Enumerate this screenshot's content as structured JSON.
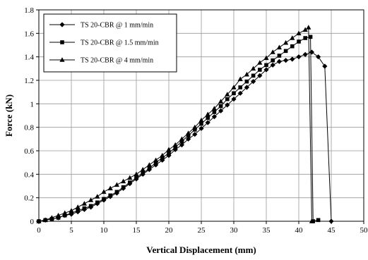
{
  "chart_data": {
    "type": "line",
    "title": "",
    "xlabel": "Vertical Displacement (mm)",
    "ylabel": "Force (kN)",
    "xlim": [
      0,
      50
    ],
    "ylim": [
      0,
      1.8
    ],
    "xticks": [
      0,
      5,
      10,
      15,
      20,
      25,
      30,
      35,
      40,
      45,
      50
    ],
    "yticks": [
      0,
      0.2,
      0.4,
      0.6,
      0.8,
      1,
      1.2,
      1.4,
      1.6,
      1.8
    ],
    "grid": true,
    "legend_position": "top-left",
    "series": [
      {
        "name": "TS 20-CBR @ 1 mm/min",
        "marker": "diamond",
        "x": [
          0,
          1,
          2,
          3,
          4,
          5,
          6,
          7,
          8,
          9,
          10,
          11,
          12,
          13,
          14,
          15,
          16,
          17,
          18,
          19,
          20,
          21,
          22,
          23,
          24,
          25,
          26,
          27,
          28,
          29,
          30,
          31,
          32,
          33,
          34,
          35,
          36,
          37,
          38,
          39,
          40,
          41,
          42,
          43,
          44,
          45
        ],
        "y": [
          0,
          0.01,
          0.02,
          0.03,
          0.05,
          0.06,
          0.08,
          0.1,
          0.12,
          0.15,
          0.18,
          0.21,
          0.24,
          0.28,
          0.32,
          0.36,
          0.4,
          0.44,
          0.48,
          0.52,
          0.56,
          0.61,
          0.65,
          0.7,
          0.74,
          0.79,
          0.84,
          0.89,
          0.94,
          0.99,
          1.04,
          1.09,
          1.14,
          1.19,
          1.24,
          1.29,
          1.33,
          1.36,
          1.37,
          1.38,
          1.4,
          1.42,
          1.44,
          1.4,
          1.32,
          0
        ]
      },
      {
        "name": "TS 20-CBR @ 1.5 mm/min",
        "marker": "square",
        "x": [
          0,
          1,
          2,
          3,
          4,
          5,
          6,
          7,
          8,
          9,
          10,
          11,
          12,
          13,
          14,
          15,
          16,
          17,
          18,
          19,
          20,
          21,
          22,
          23,
          24,
          25,
          26,
          27,
          28,
          29,
          30,
          31,
          32,
          33,
          34,
          35,
          36,
          37,
          38,
          39,
          40,
          41,
          41.8,
          42.2,
          43
        ],
        "y": [
          0,
          0.01,
          0.02,
          0.03,
          0.05,
          0.07,
          0.09,
          0.11,
          0.13,
          0.16,
          0.19,
          0.22,
          0.25,
          0.29,
          0.33,
          0.37,
          0.41,
          0.45,
          0.5,
          0.54,
          0.58,
          0.63,
          0.68,
          0.73,
          0.78,
          0.83,
          0.88,
          0.93,
          0.98,
          1.04,
          1.09,
          1.14,
          1.19,
          1.24,
          1.29,
          1.33,
          1.37,
          1.41,
          1.45,
          1.49,
          1.53,
          1.56,
          1.57,
          0,
          0.01
        ]
      },
      {
        "name": "TS 20-CBR @ 4 mm/min",
        "marker": "triangle",
        "x": [
          0,
          1,
          2,
          3,
          4,
          5,
          6,
          7,
          8,
          9,
          10,
          11,
          12,
          13,
          14,
          15,
          16,
          17,
          18,
          19,
          20,
          21,
          22,
          23,
          24,
          25,
          26,
          27,
          28,
          29,
          30,
          31,
          32,
          33,
          34,
          35,
          36,
          37,
          38,
          39,
          40,
          41,
          41.5,
          42
        ],
        "y": [
          0,
          0.01,
          0.03,
          0.05,
          0.07,
          0.09,
          0.12,
          0.15,
          0.18,
          0.21,
          0.25,
          0.28,
          0.31,
          0.34,
          0.37,
          0.4,
          0.44,
          0.48,
          0.52,
          0.56,
          0.61,
          0.65,
          0.7,
          0.75,
          0.8,
          0.86,
          0.91,
          0.96,
          1.02,
          1.08,
          1.14,
          1.21,
          1.25,
          1.3,
          1.35,
          1.39,
          1.44,
          1.48,
          1.52,
          1.56,
          1.6,
          1.63,
          1.65,
          0
        ]
      }
    ]
  }
}
